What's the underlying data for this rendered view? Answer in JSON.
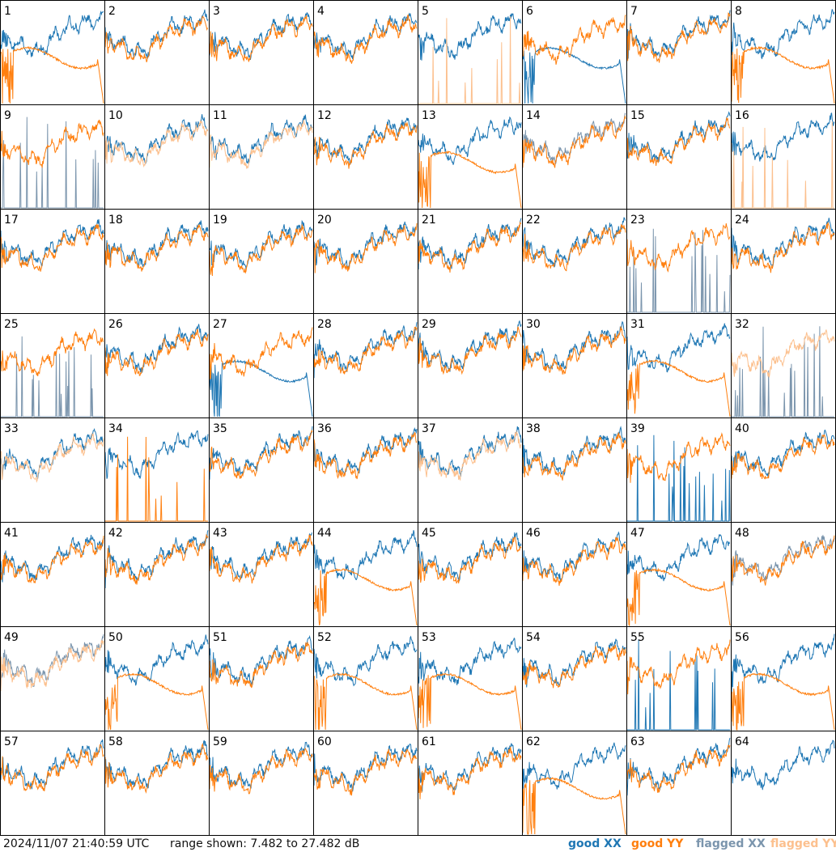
{
  "chart_data": {
    "type": "line",
    "title": "",
    "panels": [
      "1",
      "2",
      "3",
      "4",
      "5",
      "6",
      "7",
      "8",
      "9",
      "10",
      "11",
      "12",
      "13",
      "14",
      "15",
      "16",
      "17",
      "18",
      "19",
      "20",
      "21",
      "22",
      "23",
      "24",
      "25",
      "26",
      "27",
      "28",
      "29",
      "30",
      "31",
      "32",
      "33",
      "34",
      "35",
      "36",
      "37",
      "38",
      "39",
      "40",
      "41",
      "42",
      "43",
      "44",
      "45",
      "46",
      "47",
      "48",
      "49",
      "50",
      "51",
      "52",
      "53",
      "54",
      "55",
      "56",
      "57",
      "58",
      "59",
      "60",
      "61",
      "62",
      "63",
      "64"
    ],
    "ylim_db": [
      7.482,
      27.482
    ],
    "series": [
      {
        "name": "good XX",
        "color": "#1f77b4"
      },
      {
        "name": "good YY",
        "color": "#ff7f0e"
      },
      {
        "name": "flagged XX",
        "color": "#7b95ad"
      },
      {
        "name": "flagged YY",
        "color": "#fcc08e"
      }
    ],
    "panel_states": {
      "flagged_xx": [
        "9",
        "14",
        "23",
        "25",
        "32",
        "48",
        "49"
      ],
      "flagged_yy": [
        "5",
        "10",
        "11",
        "16",
        "32",
        "33",
        "37",
        "49",
        "64"
      ],
      "missing_yy": [
        "64"
      ],
      "xx_flat_response": [
        "6",
        "27"
      ],
      "yy_flat_response": [
        "1",
        "8",
        "13",
        "31",
        "44",
        "47",
        "50",
        "52",
        "53",
        "56",
        "62"
      ],
      "xx_spiky": [
        "9",
        "23",
        "25",
        "32",
        "39",
        "55"
      ],
      "yy_spiky": [
        "5",
        "16",
        "34",
        "64"
      ]
    }
  },
  "footer": {
    "timestamp": "2024/11/07 21:40:59 UTC",
    "range_text": "range shown: 7.482 to 27.482 dB",
    "legend": [
      {
        "label": "good XX",
        "color": "#1f77b4"
      },
      {
        "label": "good YY",
        "color": "#ff7f0e"
      },
      {
        "label": "flagged XX",
        "color": "#7b95ad"
      },
      {
        "label": "flagged YY",
        "color": "#fcc08e"
      }
    ]
  }
}
